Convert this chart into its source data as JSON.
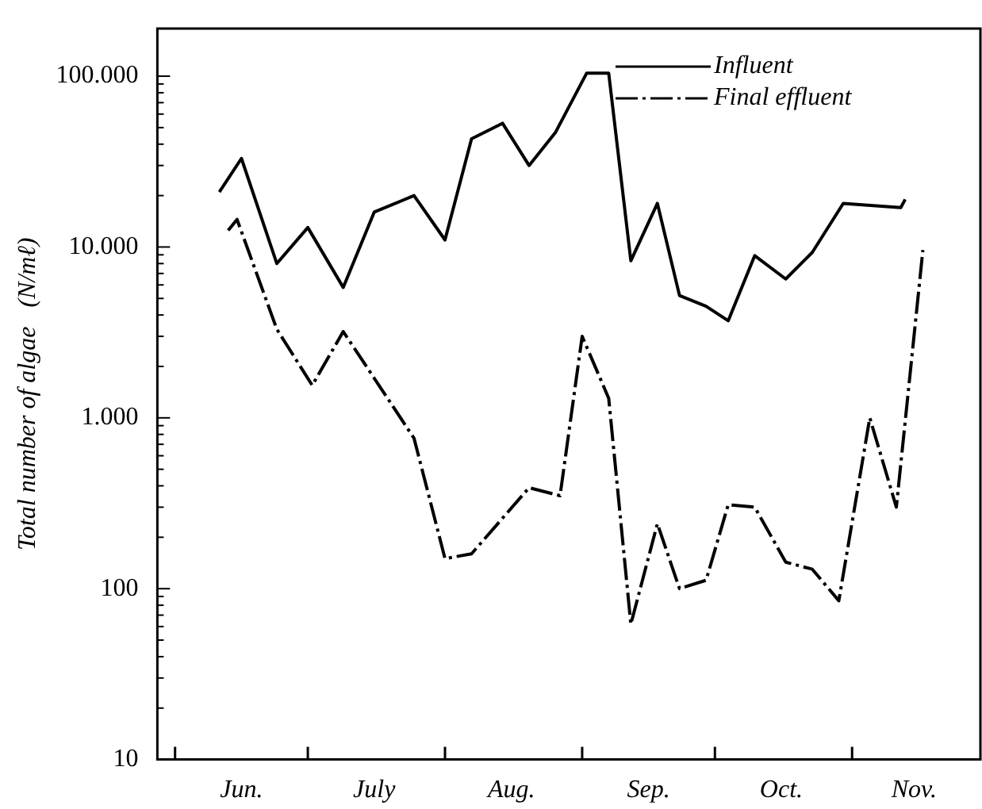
{
  "chart_data": {
    "type": "line",
    "ylabel": "Total number of algae   (N/mℓ)",
    "log": "y",
    "grid": false,
    "legend": "top right",
    "marker": "none",
    "xlim": [
      "--05-28",
      "--11-30"
    ],
    "xticks": [
      {
        "value": "--06-01",
        "label": null
      },
      {
        "value": "--06-16",
        "label": "Jun."
      },
      {
        "value": "--07-01",
        "label": null
      },
      {
        "value": "--07-16",
        "label": "July"
      },
      {
        "value": "--08-01",
        "label": null
      },
      {
        "value": "--08-16",
        "label": "Aug."
      },
      {
        "value": "--09-01",
        "label": null
      },
      {
        "value": "--09-16",
        "label": "Sep."
      },
      {
        "value": "--10-01",
        "label": null
      },
      {
        "value": "--10-16",
        "label": "Oct."
      },
      {
        "value": "--11-01",
        "label": null
      },
      {
        "value": "--11-15",
        "label": "Nov."
      }
    ],
    "ylim": [
      10,
      190000
    ],
    "yticks": [
      10,
      {
        "value": 20,
        "label": null
      },
      {
        "value": 30,
        "label": null
      },
      {
        "value": 40,
        "label": null
      },
      {
        "value": 50,
        "label": null
      },
      {
        "value": 60,
        "label": null
      },
      {
        "value": 70,
        "label": null
      },
      {
        "value": 80,
        "label": null
      },
      {
        "value": 90,
        "label": null
      },
      100,
      {
        "value": 200,
        "label": null
      },
      {
        "value": 300,
        "label": null
      },
      {
        "value": 400,
        "label": null
      },
      {
        "value": 500,
        "label": null
      },
      {
        "value": 600,
        "label": null
      },
      {
        "value": 700,
        "label": null
      },
      {
        "value": 800,
        "label": null
      },
      {
        "value": 900,
        "label": null
      },
      {
        "value": 1000,
        "label": "1.000"
      },
      {
        "value": 2000,
        "label": null
      },
      {
        "value": 3000,
        "label": null
      },
      {
        "value": 4000,
        "label": null
      },
      {
        "value": 5000,
        "label": null
      },
      {
        "value": 6000,
        "label": null
      },
      {
        "value": 7000,
        "label": null
      },
      {
        "value": 8000,
        "label": null
      },
      {
        "value": 9000,
        "label": null
      },
      {
        "value": 10000,
        "label": "10.000"
      },
      {
        "value": 20000,
        "label": null
      },
      {
        "value": 30000,
        "label": null
      },
      {
        "value": 40000,
        "label": null
      },
      {
        "value": 50000,
        "label": null
      },
      {
        "value": 60000,
        "label": null
      },
      {
        "value": 70000,
        "label": null
      },
      {
        "value": 80000,
        "label": null
      },
      {
        "value": 90000,
        "label": null
      },
      {
        "value": 100000,
        "label": "100.000"
      }
    ],
    "series": [
      {
        "name": "Influent",
        "color": "#000000",
        "line_style": "solid",
        "x": [
          "--06-11",
          "--06-16",
          "--06-24",
          "--07-01",
          "--07-09",
          "--07-16",
          "--07-25",
          "--08-01",
          "--08-07",
          "--08-14",
          "--08-20",
          "--08-26",
          "--09-02",
          "--09-07",
          "--09-12",
          "--09-18",
          "--09-23",
          "--09-29",
          "--10-04",
          "--10-10",
          "--10-17",
          "--10-23",
          "--10-30",
          "--11-12",
          "--11-13"
        ],
        "values": [
          21000,
          33000,
          8000,
          13000,
          5800,
          16000,
          20000,
          11000,
          43000,
          53000,
          30000,
          47000,
          104000,
          104000,
          8300,
          18000,
          5200,
          4500,
          3700,
          8900,
          6500,
          9300,
          18000,
          17000,
          19000
        ]
      },
      {
        "name": "Final effluent",
        "color": "#000000",
        "line_style": "dashed",
        "x": [
          "--06-13",
          "--06-15",
          "--06-24",
          "--07-02",
          "--07-09",
          "--07-25",
          "--08-01",
          "--08-07",
          "--08-20",
          "--08-27",
          "--09-01",
          "--09-07",
          "--09-12",
          "--09-18",
          "--09-23",
          "--09-29",
          "--10-04",
          "--10-10",
          "--10-17",
          "--10-23",
          "--10-29",
          "--11-05",
          "--11-11",
          "--11-17"
        ],
        "values": [
          12500,
          14500,
          3300,
          1550,
          3200,
          760,
          150,
          160,
          390,
          350,
          3000,
          1300,
          62,
          240,
          100,
          112,
          310,
          300,
          143,
          130,
          85,
          1000,
          300,
          9600
        ]
      }
    ]
  }
}
